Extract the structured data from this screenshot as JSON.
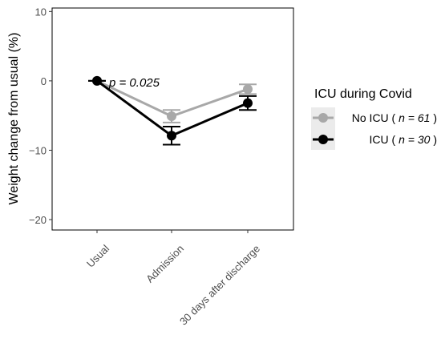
{
  "chart_data": {
    "type": "line",
    "ylabel": "Weight change from usual (%)",
    "categories": [
      "Usual",
      "Admission",
      "30 days after discharge"
    ],
    "ylim": [
      -21.5,
      10.5
    ],
    "yticks": [
      10,
      0,
      -10,
      -20
    ],
    "grid": false,
    "legend_position": "right",
    "legend": {
      "title": "ICU during Covid",
      "n_prefix": "n = "
    },
    "annotation": {
      "text": "p = 0.025",
      "x_between": [
        "Usual",
        "Admission"
      ],
      "y": 0
    },
    "series": [
      {
        "name": "No ICU",
        "n": "61",
        "label": "No ICU ( n = 61 )",
        "color": "#a8a8a8",
        "values": [
          0,
          -5.1,
          -1.2
        ],
        "error": [
          0,
          0.9,
          0.7
        ]
      },
      {
        "name": "ICU",
        "n": "30",
        "label": "ICU ( n = 30 )",
        "color": "#000000",
        "values": [
          0,
          -7.9,
          -3.2
        ],
        "error": [
          0,
          1.3,
          1.0
        ]
      }
    ]
  }
}
